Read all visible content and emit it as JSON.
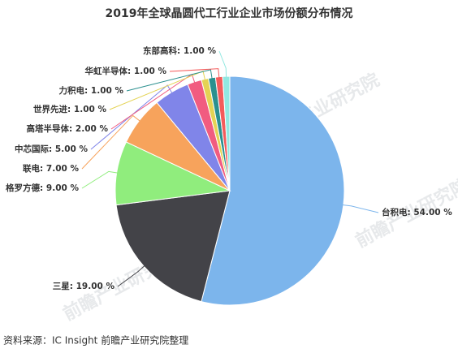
{
  "chart_data": {
    "type": "pie",
    "title": "2019年全球晶圆代工行业企业市场份额分布情况",
    "categories": [
      "台积电",
      "三星",
      "格罗方德",
      "联电",
      "中芯国际",
      "高塔半导体",
      "世界先进",
      "力积电",
      "华虹半导体",
      "东部高科"
    ],
    "values": [
      54,
      19,
      9,
      7,
      5,
      2,
      1,
      1,
      1,
      1
    ],
    "value_labels": [
      "54.00 %",
      "19.00 %",
      "9.00 %",
      "7.00 %",
      "5.00 %",
      "2.00 %",
      "1.00 %",
      "1.00 %",
      "1.00 %",
      "1.00 %"
    ],
    "colors": [
      "#7cb5ec",
      "#434348",
      "#90ed7d",
      "#f7a35c",
      "#8085e9",
      "#f15c80",
      "#e4d354",
      "#2b908f",
      "#f45b5b",
      "#91e8e1"
    ],
    "watermark": "前瞻产业研究院",
    "source": "资料来源：IC Insight 前瞻产业研究院整理"
  }
}
